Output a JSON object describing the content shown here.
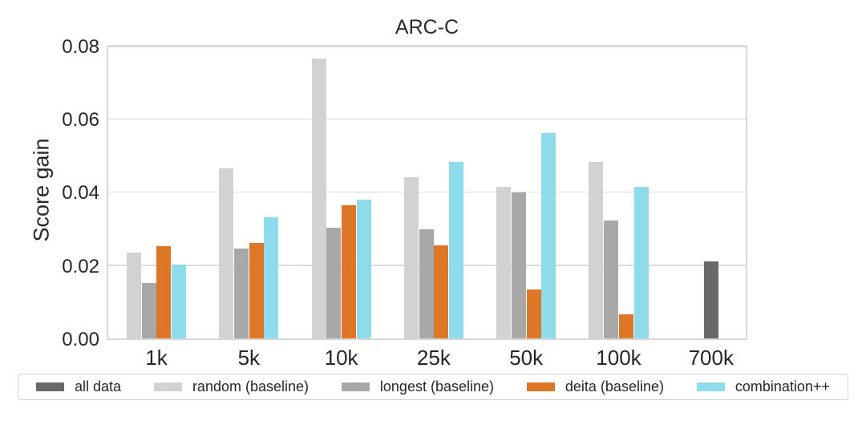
{
  "chart_data": {
    "type": "bar",
    "title": "ARC-C",
    "xlabel": "",
    "ylabel": "Score gain",
    "categories": [
      "1k",
      "5k",
      "10k",
      "25k",
      "50k",
      "100k",
      "700k"
    ],
    "series": [
      {
        "name": "all data",
        "color": "#696969",
        "values": [
          null,
          null,
          null,
          null,
          null,
          null,
          0.021
        ]
      },
      {
        "name": "random (baseline)",
        "color": "#d2d2d2",
        "values": [
          0.0235,
          0.0465,
          0.0765,
          0.044,
          0.0414,
          0.0483,
          null
        ]
      },
      {
        "name": "longest (baseline)",
        "color": "#a8a8a8",
        "values": [
          0.0151,
          0.0245,
          0.0303,
          0.0297,
          0.0398,
          0.0322,
          null
        ]
      },
      {
        "name": "deita (baseline)",
        "color": "#dd7627",
        "values": [
          0.0252,
          0.0261,
          0.0364,
          0.0254,
          0.0134,
          0.0065,
          null
        ]
      },
      {
        "name": "combination++",
        "color": "#8ddbeb",
        "values": [
          0.0202,
          0.033,
          0.038,
          0.0483,
          0.056,
          0.0415,
          null
        ]
      }
    ],
    "ylim": [
      0,
      0.0804
    ],
    "yticks": [
      0,
      0.02,
      0.04,
      0.06,
      0.08
    ],
    "ytick_labels": [
      "0.00",
      "0.02",
      "0.04",
      "0.06",
      "0.08"
    ],
    "grid": "horizontal",
    "legend_position": "bottom"
  }
}
